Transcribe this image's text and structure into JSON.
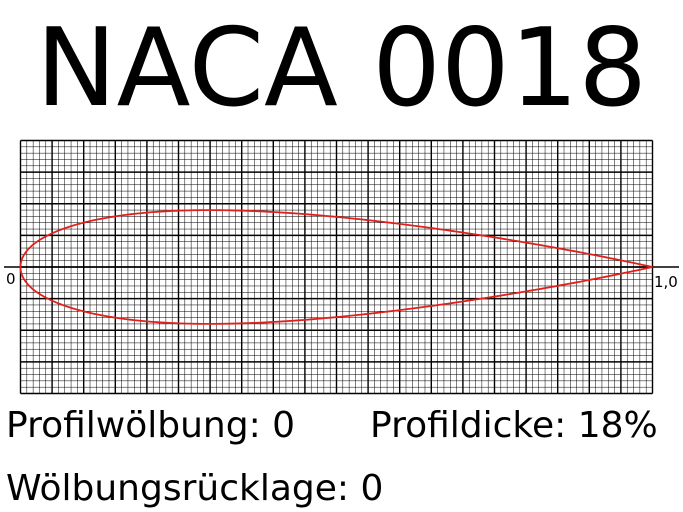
{
  "title": "NACA 0018",
  "diagram": {
    "type": "airfoil profile on grid paper",
    "thickness_ratio": 0.18,
    "camber": 0,
    "chord_start_label": "0",
    "chord_end_label": "1,0",
    "profile_color": "#e0201c",
    "grid_color": "#000000"
  },
  "labels": {
    "camber": "Profilwölbung: 0",
    "thickness": "Profildicke: 18%",
    "camber_position": "Wölbungsrücklage: 0"
  }
}
